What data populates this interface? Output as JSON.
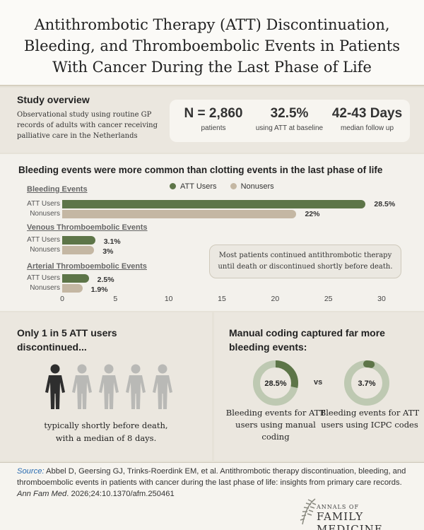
{
  "title": "Antithrombotic Therapy (ATT) Discontinuation, Bleeding, and Thromboembolic Events in Patients With Cancer During the Last Phase of Life",
  "overview": {
    "heading": "Study overview",
    "text": "Observational study using routine GP records of adults with cancer receiving palliative care in the Netherlands",
    "stats": [
      {
        "value": "N = 2,860",
        "label": "patients"
      },
      {
        "value": "32.5%",
        "label": "using ATT at baseline"
      },
      {
        "value": "42-43 Days",
        "label": "median follow up"
      }
    ]
  },
  "chart_data": {
    "type": "bar",
    "orientation": "horizontal",
    "title": "Bleeding events were more common than clotting events in the last phase of life",
    "legend": [
      "ATT Users",
      "Nonusers"
    ],
    "legend_position": "top-center",
    "groups": [
      {
        "name": "Bleeding Events",
        "rows": [
          {
            "label": "ATT Users",
            "value": 28.5,
            "display": "28.5%"
          },
          {
            "label": "Nonusers",
            "value": 22,
            "display": "22%"
          }
        ]
      },
      {
        "name": "Venous Thromboembolic Events",
        "rows": [
          {
            "label": "ATT Users",
            "value": 3.1,
            "display": "3.1%"
          },
          {
            "label": "Nonusers",
            "value": 3,
            "display": "3%"
          }
        ]
      },
      {
        "name": "Arterial Thromboembolic Events",
        "rows": [
          {
            "label": "ATT Users",
            "value": 2.5,
            "display": "2.5%"
          },
          {
            "label": "Nonusers",
            "value": 1.9,
            "display": "1.9%"
          }
        ]
      }
    ],
    "xlim": [
      0,
      30
    ],
    "xticks": [
      "0",
      "5",
      "10",
      "15",
      "20",
      "25",
      "30"
    ],
    "colors": {
      "att": "#5d7548",
      "non": "#c4b7a3"
    },
    "note": "Most patients continued antithrombotic therapy until death or discontinued shortly before death."
  },
  "discontinued": {
    "heading": "Only 1 in 5 ATT users discontinued...",
    "people_total": 5,
    "people_highlighted": 1,
    "text": "typically shortly before death, with a median of 8 days."
  },
  "coding": {
    "heading": "Manual coding captured far more bleeding events:",
    "vs": "vs",
    "donuts": [
      {
        "value": 28.5,
        "label": "28.5%",
        "caption": "Bleeding events for ATT users using manual coding"
      },
      {
        "value": 3.7,
        "label": "3.7%",
        "caption": "Bleeding events for ATT users using ICPC codes"
      }
    ]
  },
  "source": {
    "label": "Source:",
    "text": " Abbel D, Geersing GJ, Trinks-Roerdink EM, et al. Antithrombotic therapy discontinuation, bleeding, and thromboembolic events in patients with cancer during the last phase of life: insights from primary care records. ",
    "journal": "Ann Fam Med",
    "citation": ". 2026;24:10.1370/afm.250461"
  },
  "logo": {
    "small": "ANNALS OF",
    "big": "FAMILY MEDICINE"
  }
}
